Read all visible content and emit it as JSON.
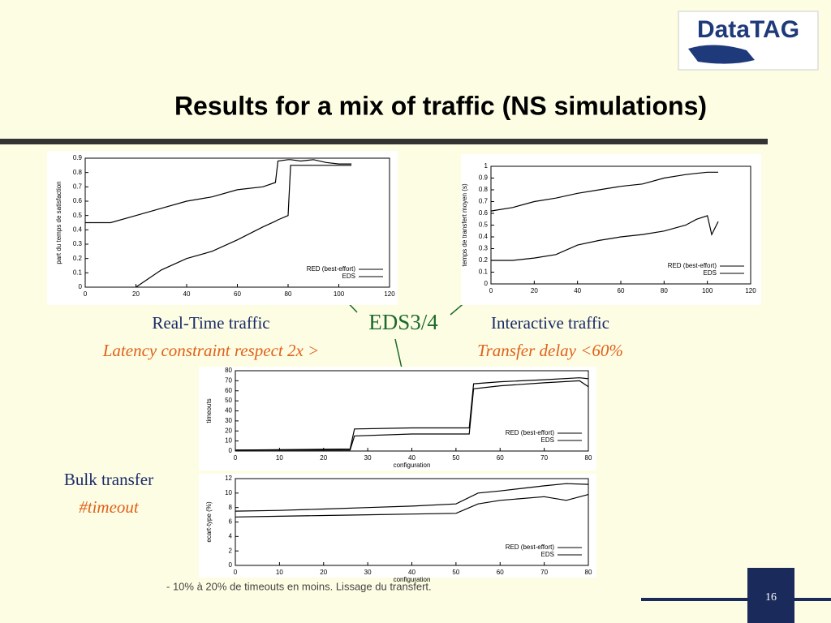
{
  "logo": "DataTAG",
  "title": "Results for a mix of traffic (NS simulations)",
  "captions": {
    "realtime": "Real-Time traffic",
    "realtime_note": "Latency constraint respect 2x >",
    "eds": "EDS3/4",
    "interactive": "Interactive traffic",
    "interactive_note": "Transfer delay <60%",
    "bulk": "Bulk transfer",
    "bulk_note": "#timeout"
  },
  "footnote": "- 10% à 20% de timeouts en moins. Lissage du transfert.",
  "slide_number": "16",
  "chart_data": [
    {
      "type": "line",
      "y_label": "part du temps de satisfaction",
      "xlim": [
        0,
        120
      ],
      "xticks": [
        0,
        20,
        40,
        60,
        80,
        100,
        120
      ],
      "ylim": [
        0,
        0.9
      ],
      "yticks": [
        0,
        0.1,
        0.2,
        0.3,
        0.4,
        0.5,
        0.6,
        0.7,
        0.8,
        0.9
      ],
      "legend": "lower right",
      "x": [
        0,
        10,
        20,
        30,
        40,
        50,
        60,
        70,
        75,
        76,
        80,
        81,
        85,
        90,
        95,
        100,
        105
      ],
      "series": [
        {
          "name": "RED (best-effort)",
          "color": "#000000",
          "values": [
            0.45,
            0.45,
            0.5,
            0.55,
            0.6,
            0.63,
            0.68,
            0.7,
            0.73,
            0.88,
            0.89,
            0.89,
            0.88,
            0.89,
            0.87,
            0.86,
            0.86
          ]
        },
        {
          "name": "EDS",
          "color": "#000000",
          "values": [
            null,
            null,
            0,
            0.12,
            0.2,
            0.25,
            0.33,
            0.42,
            0.46,
            0.47,
            0.5,
            0.85,
            0.85,
            0.85,
            0.85,
            0.85,
            0.85
          ]
        }
      ]
    },
    {
      "type": "line",
      "y_label": "temps de transfert moyen (s)",
      "xlim": [
        0,
        120
      ],
      "xticks": [
        0,
        20,
        40,
        60,
        80,
        100,
        120
      ],
      "ylim": [
        0,
        1
      ],
      "yticks": [
        0,
        0.1,
        0.2,
        0.3,
        0.4,
        0.5,
        0.6,
        0.7,
        0.8,
        0.9,
        1
      ],
      "legend": "lower right",
      "x": [
        0,
        10,
        20,
        30,
        40,
        50,
        60,
        70,
        80,
        90,
        95,
        100,
        102,
        105
      ],
      "series": [
        {
          "name": "RED (best-effort)",
          "color": "#000000",
          "values": [
            0.62,
            0.65,
            0.7,
            0.73,
            0.77,
            0.8,
            0.83,
            0.85,
            0.9,
            0.93,
            0.94,
            0.95,
            0.95,
            0.95
          ]
        },
        {
          "name": "EDS",
          "color": "#000000",
          "values": [
            0.2,
            0.2,
            0.22,
            0.25,
            0.33,
            0.37,
            0.4,
            0.42,
            0.45,
            0.5,
            0.55,
            0.58,
            0.42,
            0.53
          ]
        }
      ]
    },
    {
      "type": "line",
      "y_label": "timeouts",
      "x_label": "configuration",
      "xlim": [
        0,
        80
      ],
      "xticks": [
        0,
        10,
        20,
        30,
        40,
        50,
        60,
        70,
        80
      ],
      "ylim": [
        0,
        80
      ],
      "yticks": [
        0,
        10,
        20,
        30,
        40,
        50,
        60,
        70,
        80
      ],
      "legend": "lower right",
      "x": [
        0,
        26,
        27,
        40,
        53,
        54,
        60,
        70,
        78,
        80
      ],
      "series": [
        {
          "name": "RED (best-effort)",
          "color": "#000000",
          "values": [
            1,
            2,
            22,
            23,
            23,
            67,
            69,
            71,
            73,
            72
          ]
        },
        {
          "name": "EDS",
          "color": "#000000",
          "values": [
            1,
            1,
            15,
            17,
            17,
            62,
            65,
            68,
            70,
            64
          ]
        }
      ]
    },
    {
      "type": "line",
      "y_label": "ecart-type (%)",
      "x_label": "configuration",
      "xlim": [
        0,
        80
      ],
      "xticks": [
        0,
        10,
        20,
        30,
        40,
        50,
        60,
        70,
        80
      ],
      "ylim": [
        0,
        12
      ],
      "yticks": [
        0,
        2,
        4,
        6,
        8,
        10,
        12
      ],
      "legend": "lower right",
      "x": [
        0,
        10,
        20,
        30,
        40,
        50,
        55,
        60,
        70,
        75,
        80
      ],
      "series": [
        {
          "name": "RED (best-effort)",
          "color": "#000000",
          "values": [
            7.5,
            7.6,
            7.8,
            8,
            8.2,
            8.5,
            10,
            10.3,
            11,
            11.3,
            11.2
          ]
        },
        {
          "name": "EDS",
          "color": "#000000",
          "values": [
            6.7,
            6.8,
            6.9,
            7,
            7.1,
            7.2,
            8.5,
            9,
            9.5,
            9,
            9.8
          ]
        }
      ]
    }
  ]
}
